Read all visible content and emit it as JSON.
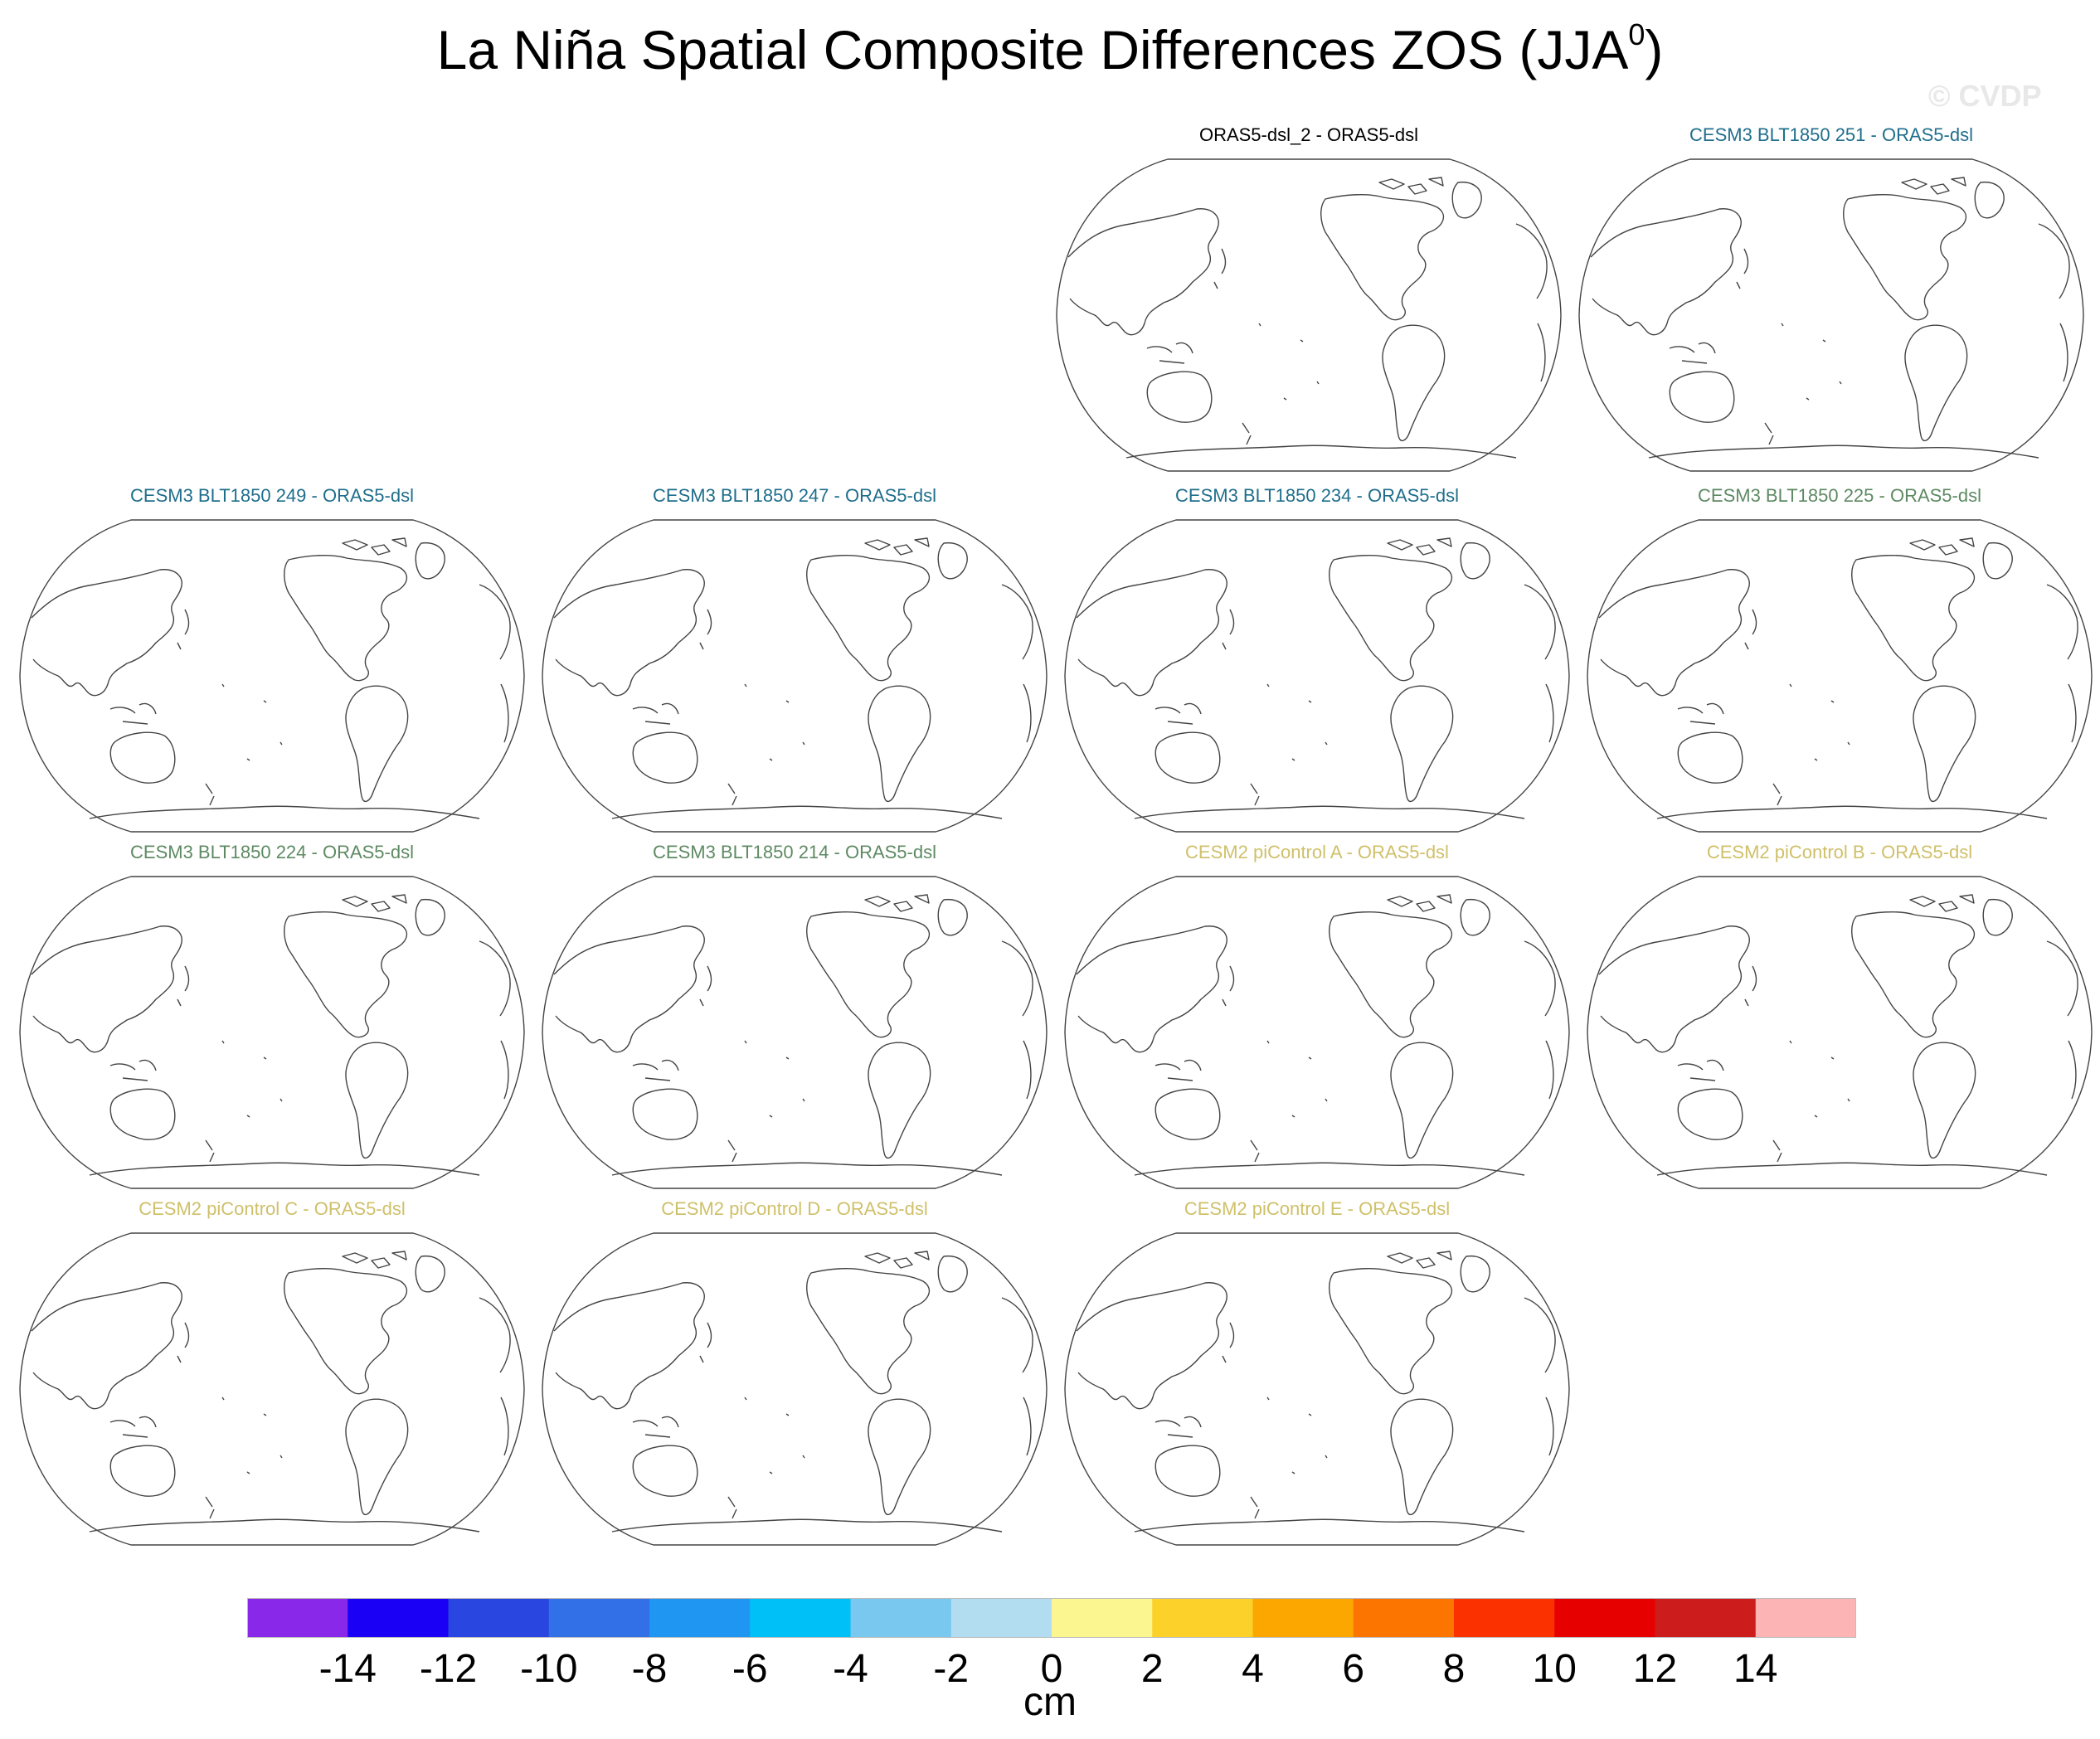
{
  "title": {
    "main": "La Niña Spatial Composite Differences ZOS (JJA",
    "sup": "0",
    "close": ")"
  },
  "watermark": "© CVDP",
  "panels": [
    {
      "label": "ORAS5-dsl_2 - ORAS5-dsl",
      "color": "#000000"
    },
    {
      "label": "CESM3 BLT1850 251 - ORAS5-dsl",
      "color": "#1f6e8c"
    },
    {
      "label": "CESM3 BLT1850 249 - ORAS5-dsl",
      "color": "#1f6e8c"
    },
    {
      "label": "CESM3 BLT1850 247 - ORAS5-dsl",
      "color": "#1f6e8c"
    },
    {
      "label": "CESM3 BLT1850 234 - ORAS5-dsl",
      "color": "#1f6e8c"
    },
    {
      "label": "CESM3 BLT1850 225 - ORAS5-dsl",
      "color": "#5e8a63"
    },
    {
      "label": "CESM3 BLT1850 224 - ORAS5-dsl",
      "color": "#5e8a63"
    },
    {
      "label": "CESM3 BLT1850 214 - ORAS5-dsl",
      "color": "#5e8a63"
    },
    {
      "label": "CESM2 piControl A - ORAS5-dsl",
      "color": "#cfc06a"
    },
    {
      "label": "CESM2 piControl B - ORAS5-dsl",
      "color": "#cfc06a"
    },
    {
      "label": "CESM2 piControl C - ORAS5-dsl",
      "color": "#cfc06a"
    },
    {
      "label": "CESM2 piControl D - ORAS5-dsl",
      "color": "#cfc06a"
    },
    {
      "label": "CESM2 piControl E - ORAS5-dsl",
      "color": "#cfc06a"
    }
  ],
  "colorbar": {
    "units": "cm",
    "labels": [
      "-14",
      "-12",
      "-10",
      "-8",
      "-6",
      "-4",
      "-2",
      "0",
      "2",
      "4",
      "6",
      "8",
      "10",
      "12",
      "14"
    ],
    "colors": [
      "#8a28ea",
      "#1a00f5",
      "#2a46e0",
      "#3170e6",
      "#1e96f2",
      "#00c0f8",
      "#78c8ef",
      "#b2dcf0",
      "#fbf690",
      "#fcd12a",
      "#fca600",
      "#fb7500",
      "#fb3200",
      "#e60000",
      "#cd1c1c",
      "#fdb4b4"
    ]
  }
}
